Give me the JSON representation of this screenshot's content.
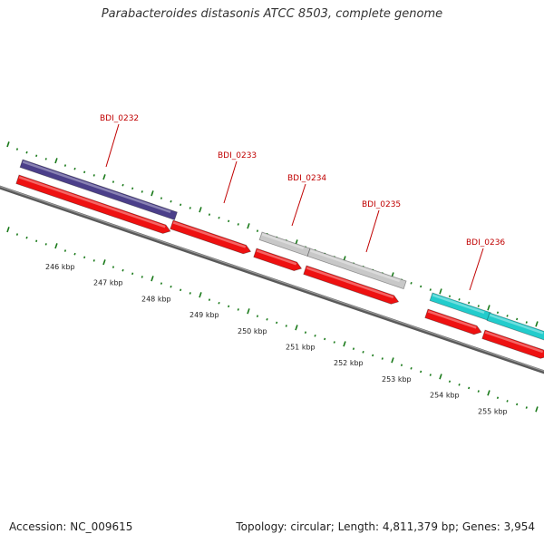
{
  "title": "Parabacteroides distasonis ATCC 8503, complete genome",
  "footer": {
    "accession": "Accession: NC_009615",
    "summary": "Topology: circular; Length: 4,811,379 bp; Genes: 3,954"
  },
  "colors": {
    "backbone": "#777777",
    "cds": "#ee1111",
    "tick": "#1a7a1a",
    "label": "#c00000"
  },
  "kbp_labels": [
    "246 kbp",
    "247 kbp",
    "248 kbp",
    "249 kbp",
    "250 kbp",
    "251 kbp",
    "252 kbp",
    "253 kbp",
    "254 kbp",
    "255 kbp"
  ],
  "genes": [
    {
      "name": "BDI_0232",
      "hit_color": "#4b3f8a"
    },
    {
      "name": "BDI_0233",
      "hit_color": null
    },
    {
      "name": "BDI_0234",
      "hit_color": "#c8c8c8"
    },
    {
      "name": "BDI_0235",
      "hit_color": "#c8c8c8"
    },
    {
      "name": "BDI_0236",
      "hit_color": "#22cccc"
    }
  ]
}
